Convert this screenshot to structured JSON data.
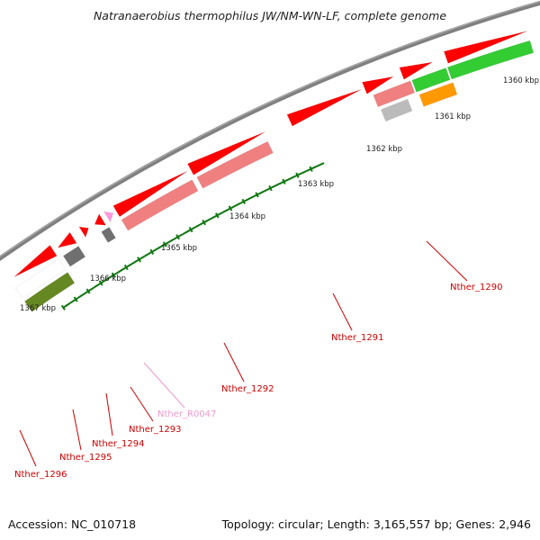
{
  "title": "Natranaerobius thermophilus JW/NM-WN-LF, complete genome",
  "footer": {
    "accession": "Accession: NC_010718",
    "summary": "Topology: circular; Length: 3,165,557 bp; Genes: 2,946"
  },
  "ruler_labels": [
    "1360 kbp",
    "1361 kbp",
    "1362 kbp",
    "1363 kbp",
    "1364 kbp",
    "1365 kbp",
    "1366 kbp",
    "1367 kbp"
  ],
  "gene_labels": [
    "Nther_1290",
    "Nther_1291",
    "Nther_1292",
    "Nther_R0047",
    "Nther_1293",
    "Nther_1294",
    "Nther_1295",
    "Nther_1296"
  ],
  "colors": {
    "gene_label": "#cc0000",
    "rna_label": "#ee99cc",
    "backbone": "#808080",
    "ruler_tick": "#117711",
    "cds": "#ff0000",
    "cds_light": "#f08080",
    "rna": "#ff99dd",
    "gray_dark": "#707070",
    "gray_light": "#bbbbbb",
    "green": "#33cc33",
    "orange": "#ff9900",
    "olive": "#668822"
  }
}
